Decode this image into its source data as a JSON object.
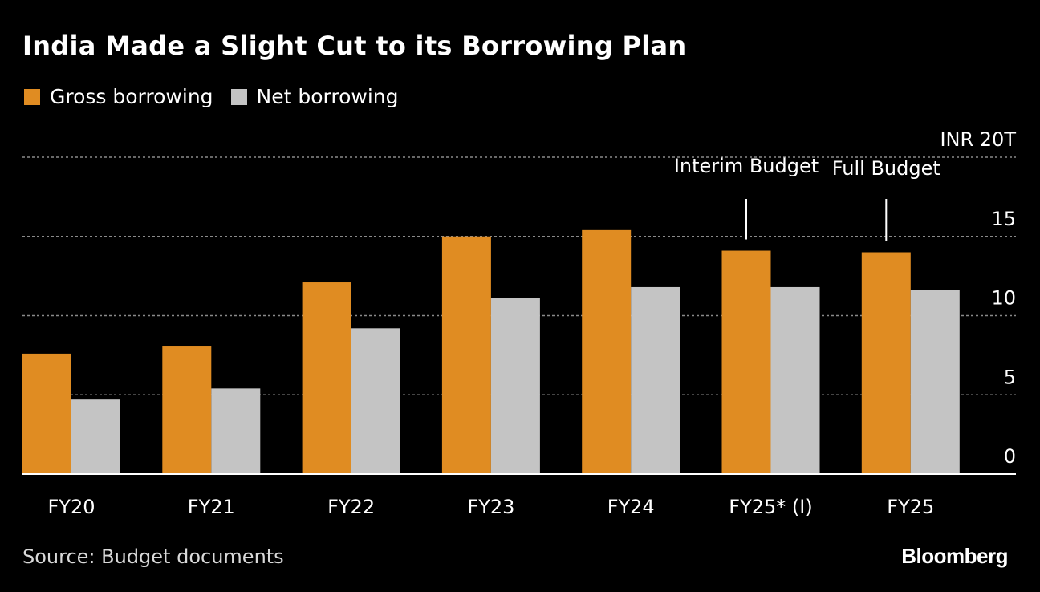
{
  "colors": {
    "background": "#000000",
    "gross": "#e08c22",
    "net": "#c4c4c4",
    "text": "#ffffff",
    "grid": "#8a8a8a"
  },
  "legend": [
    {
      "label": "Gross borrowing",
      "color": "#e08c22"
    },
    {
      "label": "Net borrowing",
      "color": "#c4c4c4"
    }
  ],
  "source": "Source: Budget documents",
  "brand": "Bloomberg",
  "chart_data": {
    "type": "bar",
    "title": "India Made a Slight Cut to its Borrowing Plan",
    "categories": [
      "FY20",
      "FY21",
      "FY22",
      "FY23",
      "FY24",
      "FY25* (I)",
      "FY25"
    ],
    "series": [
      {
        "name": "Gross borrowing",
        "values": [
          7.6,
          8.1,
          12.1,
          15.0,
          15.4,
          14.1,
          14.0
        ]
      },
      {
        "name": "Net borrowing",
        "values": [
          4.7,
          5.4,
          9.2,
          11.1,
          11.8,
          11.8,
          11.6
        ]
      }
    ],
    "ylim": [
      0,
      20
    ],
    "yticks": [
      0,
      5,
      10,
      15,
      20
    ],
    "ytick_labels": [
      "0",
      "5",
      "10",
      "15",
      "INR 20T"
    ],
    "yaxis_position": "right",
    "grid": true,
    "annotations": [
      {
        "text": "Interim Budget",
        "category_index": 5
      },
      {
        "text": "Full Budget",
        "category_index": 6
      }
    ]
  }
}
